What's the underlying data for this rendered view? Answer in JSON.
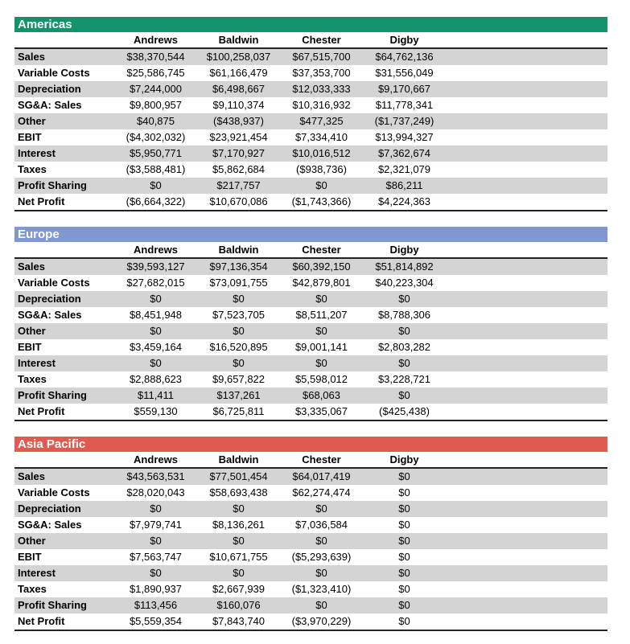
{
  "columns": [
    "Andrews",
    "Baldwin",
    "Chester",
    "Digby"
  ],
  "sections": [
    {
      "title": "Americas",
      "color": "#12936c",
      "rows": [
        {
          "label": "Sales",
          "values": [
            "$38,370,544",
            "$100,258,037",
            "$67,515,700",
            "$64,762,136"
          ]
        },
        {
          "label": "Variable Costs",
          "values": [
            "$25,586,745",
            "$61,166,479",
            "$37,353,700",
            "$31,556,049"
          ]
        },
        {
          "label": "Depreciation",
          "values": [
            "$7,244,000",
            "$6,498,667",
            "$12,033,333",
            "$9,170,667"
          ]
        },
        {
          "label": "SG&A: Sales",
          "values": [
            "$9,800,957",
            "$9,110,374",
            "$10,316,932",
            "$11,778,341"
          ]
        },
        {
          "label": "Other",
          "values": [
            "$40,875",
            "($438,937)",
            "$477,325",
            "($1,737,249)"
          ]
        },
        {
          "label": "EBIT",
          "values": [
            "($4,302,032)",
            "$23,921,454",
            "$7,334,410",
            "$13,994,327"
          ]
        },
        {
          "label": "Interest",
          "values": [
            "$5,950,771",
            "$7,170,927",
            "$10,016,512",
            "$7,362,674"
          ]
        },
        {
          "label": "Taxes",
          "values": [
            "($3,588,481)",
            "$5,862,684",
            "($938,736)",
            "$2,321,079"
          ]
        },
        {
          "label": "Profit Sharing",
          "values": [
            "$0",
            "$217,757",
            "$0",
            "$86,211"
          ]
        },
        {
          "label": "Net Profit",
          "values": [
            "($6,664,322)",
            "$10,670,086",
            "($1,743,366)",
            "$4,224,363"
          ]
        }
      ]
    },
    {
      "title": "Europe",
      "color": "#8098cf",
      "rows": [
        {
          "label": "Sales",
          "values": [
            "$39,593,127",
            "$97,136,354",
            "$60,392,150",
            "$51,814,892"
          ]
        },
        {
          "label": "Variable Costs",
          "values": [
            "$27,682,015",
            "$73,091,755",
            "$42,879,801",
            "$40,223,304"
          ]
        },
        {
          "label": "Depreciation",
          "values": [
            "$0",
            "$0",
            "$0",
            "$0"
          ]
        },
        {
          "label": "SG&A: Sales",
          "values": [
            "$8,451,948",
            "$7,523,705",
            "$8,511,207",
            "$8,788,306"
          ]
        },
        {
          "label": "Other",
          "values": [
            "$0",
            "$0",
            "$0",
            "$0"
          ]
        },
        {
          "label": "EBIT",
          "values": [
            "$3,459,164",
            "$16,520,895",
            "$9,001,141",
            "$2,803,282"
          ]
        },
        {
          "label": "Interest",
          "values": [
            "$0",
            "$0",
            "$0",
            "$0"
          ]
        },
        {
          "label": "Taxes",
          "values": [
            "$2,888,623",
            "$9,657,822",
            "$5,598,012",
            "$3,228,721"
          ]
        },
        {
          "label": "Profit Sharing",
          "values": [
            "$11,411",
            "$137,261",
            "$68,063",
            "$0"
          ]
        },
        {
          "label": "Net Profit",
          "values": [
            "$559,130",
            "$6,725,811",
            "$3,335,067",
            "($425,438)"
          ]
        }
      ]
    },
    {
      "title": "Asia Pacific",
      "color": "#e05a52",
      "rows": [
        {
          "label": "Sales",
          "values": [
            "$43,563,531",
            "$77,501,454",
            "$64,017,419",
            "$0"
          ]
        },
        {
          "label": "Variable Costs",
          "values": [
            "$28,020,043",
            "$58,693,438",
            "$62,274,474",
            "$0"
          ]
        },
        {
          "label": "Depreciation",
          "values": [
            "$0",
            "$0",
            "$0",
            "$0"
          ]
        },
        {
          "label": "SG&A: Sales",
          "values": [
            "$7,979,741",
            "$8,136,261",
            "$7,036,584",
            "$0"
          ]
        },
        {
          "label": "Other",
          "values": [
            "$0",
            "$0",
            "$0",
            "$0"
          ]
        },
        {
          "label": "EBIT",
          "values": [
            "$7,563,747",
            "$10,671,755",
            "($5,293,639)",
            "$0"
          ]
        },
        {
          "label": "Interest",
          "values": [
            "$0",
            "$0",
            "$0",
            "$0"
          ]
        },
        {
          "label": "Taxes",
          "values": [
            "$1,890,937",
            "$2,667,939",
            "($1,323,410)",
            "$0"
          ]
        },
        {
          "label": "Profit Sharing",
          "values": [
            "$113,456",
            "$160,076",
            "$0",
            "$0"
          ]
        },
        {
          "label": "Net Profit",
          "values": [
            "$5,559,354",
            "$7,843,740",
            "($3,970,229)",
            "$0"
          ]
        }
      ]
    }
  ]
}
